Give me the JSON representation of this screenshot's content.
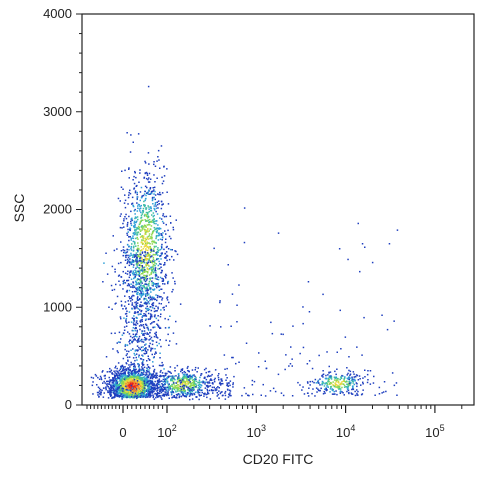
{
  "chart_data": {
    "type": "scatter",
    "title": "",
    "xlabel": "CD20 FITC",
    "ylabel": "SSC",
    "x_scale": "biexponential",
    "x_tick_labels": [
      {
        "value": 0,
        "base": "0",
        "exp": ""
      },
      {
        "value": 100,
        "base": "10",
        "exp": "2"
      },
      {
        "value": 1000,
        "base": "10",
        "exp": "3"
      },
      {
        "value": 10000,
        "base": "10",
        "exp": "4"
      },
      {
        "value": 100000,
        "base": "10",
        "exp": "5"
      }
    ],
    "y_scale": "linear",
    "ylim": [
      0,
      4000
    ],
    "y_ticks": [
      0,
      1000,
      2000,
      3000,
      4000
    ],
    "density_colors": [
      "#1f3fbf",
      "#2f9fd8",
      "#3fbf9f",
      "#8fd84f",
      "#e8d83f",
      "#f08a2f",
      "#e8201f"
    ],
    "populations": [
      {
        "label": "",
        "x_center": 20,
        "y_center": 200,
        "n_points": 1400,
        "density": "high"
      },
      {
        "label": "",
        "x_center": 150,
        "y_center": 220,
        "n_points": 500,
        "density": "medium"
      },
      {
        "label": "",
        "x_center": 50,
        "y_center": 1600,
        "n_points": 1100,
        "density": "medium"
      },
      {
        "label": "",
        "x_center": 8000,
        "y_center": 230,
        "n_points": 260,
        "density": "medium"
      }
    ]
  }
}
